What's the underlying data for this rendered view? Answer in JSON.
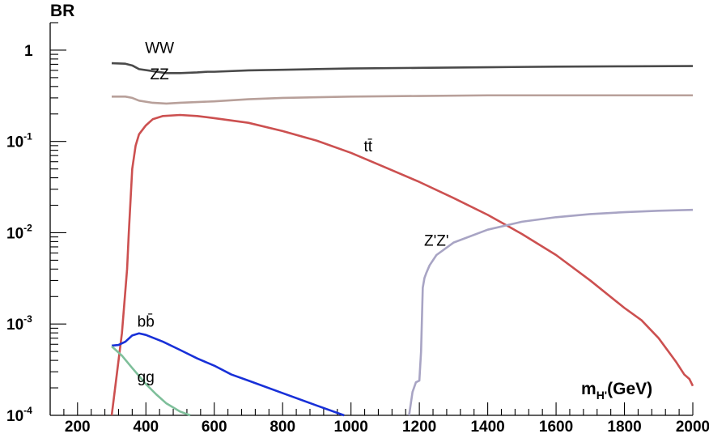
{
  "chart_data": {
    "type": "line",
    "ylabel": "BR",
    "xlabel": "m",
    "xlabel_sub": "H'",
    "xlabel_unit": "(GeV)",
    "xlim": [
      120,
      2000
    ],
    "ylim": [
      0.0001,
      2.0
    ],
    "yscale": "log",
    "grid": false,
    "x_ticks": [
      200,
      400,
      600,
      800,
      1000,
      1200,
      1400,
      1600,
      1800,
      2000
    ],
    "x_tick_labels": [
      "200",
      "400",
      "600",
      "800",
      "1000",
      "1200",
      "1400",
      "1600",
      "1800",
      "2000"
    ],
    "y_ticks": [
      {
        "value": 1,
        "base": "1",
        "exp": ""
      },
      {
        "value": 0.1,
        "base": "10",
        "exp": "-1"
      },
      {
        "value": 0.01,
        "base": "10",
        "exp": "-2"
      },
      {
        "value": 0.001,
        "base": "10",
        "exp": "-3"
      },
      {
        "value": 0.0001,
        "base": "10",
        "exp": "-4"
      }
    ],
    "series": [
      {
        "name": "WW",
        "color": "#4a4a4a",
        "label_pos": [
          440,
          0.93
        ],
        "x": [
          300,
          340,
          360,
          380,
          420,
          460,
          500,
          550,
          580,
          600,
          700,
          800,
          900,
          1000,
          1200,
          1400,
          1600,
          1800,
          2000
        ],
        "y": [
          0.72,
          0.71,
          0.68,
          0.62,
          0.59,
          0.56,
          0.56,
          0.57,
          0.58,
          0.58,
          0.6,
          0.61,
          0.62,
          0.63,
          0.64,
          0.65,
          0.66,
          0.665,
          0.67
        ]
      },
      {
        "name": "ZZ",
        "color": "#b8a09a",
        "label_pos": [
          440,
          0.48
        ],
        "x": [
          300,
          340,
          360,
          380,
          420,
          460,
          500,
          600,
          700,
          800,
          1000,
          1200,
          1400,
          1600,
          1800,
          2000
        ],
        "y": [
          0.31,
          0.31,
          0.3,
          0.28,
          0.265,
          0.26,
          0.265,
          0.275,
          0.29,
          0.3,
          0.31,
          0.315,
          0.32,
          0.32,
          0.32,
          0.32
        ]
      },
      {
        "name": "tt̄",
        "color": "#cc5050",
        "label_pos": [
          1050,
          0.078
        ],
        "x": [
          300,
          330,
          345,
          350,
          360,
          370,
          380,
          400,
          420,
          450,
          500,
          550,
          600,
          700,
          800,
          900,
          1000,
          1100,
          1200,
          1300,
          1400,
          1500,
          1600,
          1700,
          1800,
          1850,
          1900,
          1950,
          1975,
          1990,
          2000
        ],
        "y": [
          0.0001,
          0.0008,
          0.004,
          0.01,
          0.05,
          0.09,
          0.12,
          0.15,
          0.175,
          0.19,
          0.195,
          0.19,
          0.18,
          0.16,
          0.13,
          0.102,
          0.075,
          0.052,
          0.036,
          0.024,
          0.0157,
          0.0097,
          0.0057,
          0.003,
          0.0015,
          0.0011,
          0.0007,
          0.00039,
          0.00028,
          0.00025,
          0.00021
        ]
      },
      {
        "name": "Z'Z'",
        "color": "#a8a4c4",
        "label_pos": [
          1250,
          0.0072
        ],
        "x": [
          1170,
          1180,
          1190,
          1200,
          1205,
          1210,
          1215,
          1220,
          1230,
          1250,
          1300,
          1400,
          1500,
          1600,
          1700,
          1800,
          1900,
          2000
        ],
        "y": [
          0.0001,
          0.00018,
          0.00023,
          0.00024,
          0.0005,
          0.0025,
          0.0032,
          0.0036,
          0.0044,
          0.0057,
          0.0078,
          0.0108,
          0.0132,
          0.0148,
          0.016,
          0.0168,
          0.0174,
          0.0178
        ]
      },
      {
        "name": "bb̄",
        "color": "#1830d8",
        "label_pos": [
          400,
          0.00094
        ],
        "x": [
          300,
          320,
          340,
          360,
          380,
          400,
          450,
          500,
          550,
          600,
          650,
          700,
          800,
          900,
          980
        ],
        "y": [
          0.00058,
          0.00059,
          0.00064,
          0.00075,
          0.00079,
          0.00076,
          0.00064,
          0.00052,
          0.00042,
          0.00035,
          0.00028,
          0.00024,
          0.000175,
          0.000128,
          0.0001
        ]
      },
      {
        "name": "gg",
        "color": "#7ebf9a",
        "label_pos": [
          400,
          0.00023
        ],
        "x": [
          300,
          330,
          360,
          380,
          400,
          430,
          460,
          500,
          530
        ],
        "y": [
          0.00057,
          0.00045,
          0.00033,
          0.00027,
          0.00022,
          0.00017,
          0.000135,
          0.00011,
          0.0001
        ]
      }
    ]
  }
}
